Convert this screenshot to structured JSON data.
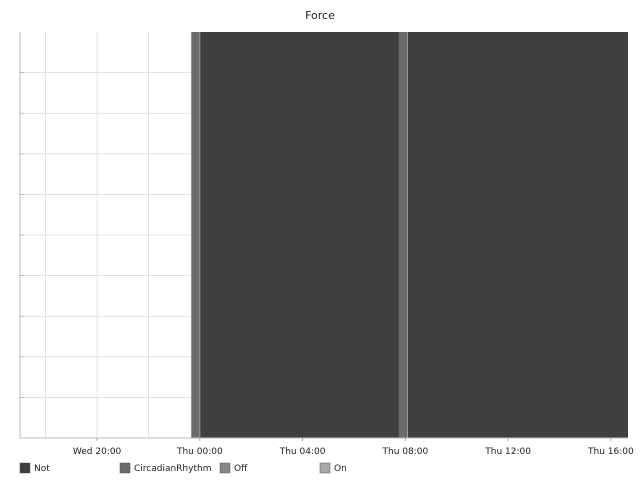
{
  "chart_data": {
    "type": "area",
    "title": "Force",
    "xlabel": "",
    "ylabel": "",
    "x_range": [
      "Wed 17:00",
      "Thu 16:40"
    ],
    "x_ticks": [
      "Wed 20:00",
      "Thu 00:00",
      "Thu 04:00",
      "Thu 08:00",
      "Thu 12:00",
      "Thu 16:00"
    ],
    "y_tick_labels_shown": false,
    "grid": true,
    "legend": "bottom",
    "series": [
      {
        "name": "Not",
        "color": "#3f3f3f",
        "intervals": [
          [
            "Thu 00:00",
            "Thu 07:45"
          ],
          [
            "Thu 08:05",
            "Thu 16:40"
          ]
        ]
      },
      {
        "name": "CircadianRhythm",
        "color": "#6b6b6b",
        "intervals": [
          [
            "Wed 23:40",
            "Thu 00:00"
          ],
          [
            "Thu 07:45",
            "Thu 08:05"
          ]
        ]
      },
      {
        "name": "Off",
        "color": "#888888",
        "intervals": []
      },
      {
        "name": "On",
        "color": "#a8a8a8",
        "intervals": []
      }
    ]
  },
  "colors": {
    "grid": "#e0c8d4",
    "axis": "#bbbbbb"
  }
}
